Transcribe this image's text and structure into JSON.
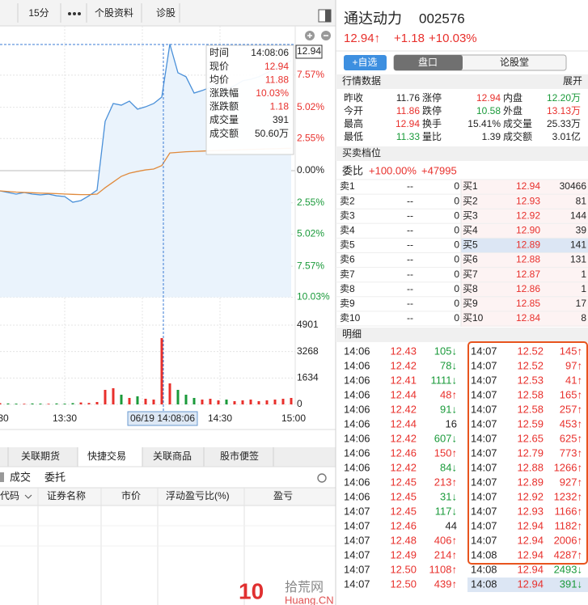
{
  "toolbar": {
    "tabs": [
      "15分",
      "个股资料",
      "诊股"
    ]
  },
  "chart_data": [
    {
      "type": "line",
      "ylim": [
        -10.03,
        10.03
      ],
      "yticks": [
        {
          "value": 7.57,
          "label": "7.57%"
        },
        {
          "value": 5.02,
          "label": "5.02%"
        },
        {
          "value": 2.55,
          "label": "2.55%"
        },
        {
          "value": 0,
          "label": "0.00%"
        },
        {
          "value": -2.55,
          "label": "2.55%"
        },
        {
          "value": -5.02,
          "label": "5.02%"
        },
        {
          "value": -7.57,
          "label": "7.57%"
        },
        {
          "value": -10.03,
          "label": "10.03%"
        }
      ],
      "series": [
        {
          "color": "#4a90d9",
          "values": [
            -1.6,
            -1.73,
            -1.86,
            -1.73,
            -1.86,
            -1.92,
            -1.86,
            -1.99,
            -2.05,
            -2.5,
            -2.37,
            -1.99,
            -1.54,
            3.91,
            5.32,
            5.19,
            5.51,
            4.87,
            5.06,
            5.32,
            5.83,
            10.03,
            7.76,
            7.44,
            6.15,
            6.35,
            6.6,
            6.79,
            6.47,
            6.73,
            7.12,
            7.24,
            7.44,
            7.76,
            8.08,
            8.4,
            8.72
          ]
        },
        {
          "color": "#e08a3c",
          "values": [
            -1.6,
            -1.65,
            -1.7,
            -1.72,
            -1.75,
            -1.78,
            -1.8,
            -1.82,
            -1.85,
            -1.88,
            -1.9,
            -1.9,
            -1.86,
            -1.35,
            -0.9,
            -0.45,
            -0.2,
            -0.06,
            0.06,
            0.13,
            0.4,
            1.4,
            1.45,
            1.5,
            1.52,
            1.55,
            1.58,
            1.6,
            1.62,
            1.64,
            1.66,
            1.68,
            1.7,
            1.72,
            1.74,
            1.76,
            1.78
          ]
        }
      ]
    },
    {
      "type": "bar",
      "ylim": [
        0,
        4901
      ],
      "yticks": [
        4901,
        3268,
        1634,
        0
      ],
      "values": [
        80,
        60,
        50,
        40,
        60,
        50,
        40,
        60,
        50,
        80,
        120,
        90,
        150,
        900,
        1000,
        600,
        400,
        500,
        350,
        300,
        4100,
        1300,
        900,
        600,
        400,
        300,
        350,
        250,
        300,
        200,
        250,
        300,
        200,
        250,
        300,
        350,
        400
      ]
    }
  ],
  "x_labels": [
    "30",
    "13:30",
    "14:30",
    "15:00"
  ],
  "cursor": {
    "price": "12.94",
    "time": "06/19 14:08:06"
  },
  "tooltip": {
    "rows": [
      [
        "时间",
        "14:08:06"
      ],
      [
        "现价",
        "12.94"
      ],
      [
        "均价",
        "11.88"
      ],
      [
        "涨跌幅",
        "10.03%"
      ],
      [
        "涨跌额",
        "1.18"
      ],
      [
        "成交量",
        "391"
      ],
      [
        "成交额",
        "50.60万"
      ]
    ],
    "value_colors": [
      "#222",
      "#e8302c",
      "#e8302c",
      "#e8302c",
      "#e8302c",
      "#222",
      "#222"
    ]
  },
  "stock": {
    "name": "通达动力",
    "code": "002576",
    "price": "12.94↑",
    "change": "+1.18",
    "change_pct": "+10.03%"
  },
  "buttons": [
    "+自选",
    "盘口",
    "论股堂"
  ],
  "quote": {
    "title": "行情数据",
    "expand": "展开",
    "rows": [
      [
        "昨收",
        "11.76",
        "涨停",
        "12.94",
        "内盘",
        "12.20万"
      ],
      [
        "今开",
        "11.86",
        "跌停",
        "10.58",
        "外盘",
        "13.13万"
      ],
      [
        "最高",
        "12.94",
        "换手",
        "15.41%",
        "成交量",
        "25.33万"
      ],
      [
        "最低",
        "11.33",
        "量比",
        "1.39",
        "成交额",
        "3.01亿"
      ]
    ],
    "colors": [
      [
        "#222",
        "#e8302c",
        "#1a9a3a"
      ],
      [
        "#e8302c",
        "#1a9a3a",
        "#e8302c"
      ],
      [
        "#e8302c",
        "#222",
        "#222"
      ],
      [
        "#1a9a3a",
        "#222",
        "#222"
      ]
    ]
  },
  "orderbook": {
    "title": "买卖档位",
    "ratio_label": "委比",
    "ratio": "+100.00%",
    "diff": "+47995",
    "sell": [
      [
        "卖1",
        "--",
        "0"
      ],
      [
        "卖2",
        "--",
        "0"
      ],
      [
        "卖3",
        "--",
        "0"
      ],
      [
        "卖4",
        "--",
        "0"
      ],
      [
        "卖5",
        "--",
        "0"
      ],
      [
        "卖6",
        "--",
        "0"
      ],
      [
        "卖7",
        "--",
        "0"
      ],
      [
        "卖8",
        "--",
        "0"
      ],
      [
        "卖9",
        "--",
        "0"
      ],
      [
        "卖10",
        "--",
        "0"
      ]
    ],
    "buy": [
      [
        "买1",
        "12.94",
        "30466"
      ],
      [
        "买2",
        "12.93",
        "81"
      ],
      [
        "买3",
        "12.92",
        "144"
      ],
      [
        "买4",
        "12.90",
        "39"
      ],
      [
        "买5",
        "12.89",
        "141"
      ],
      [
        "买6",
        "12.88",
        "131"
      ],
      [
        "买7",
        "12.87",
        "1"
      ],
      [
        "买8",
        "12.86",
        "1"
      ],
      [
        "买9",
        "12.85",
        "17"
      ],
      [
        "买10",
        "12.84",
        "8"
      ]
    ]
  },
  "trades": {
    "title": "明细",
    "left": [
      [
        "14:06",
        "12.43",
        "105↓"
      ],
      [
        "14:06",
        "12.42",
        "78↓"
      ],
      [
        "14:06",
        "12.41",
        "1111↓"
      ],
      [
        "14:06",
        "12.44",
        "48↑"
      ],
      [
        "14:06",
        "12.42",
        "91↓"
      ],
      [
        "14:06",
        "12.44",
        "16"
      ],
      [
        "14:06",
        "12.42",
        "607↓"
      ],
      [
        "14:06",
        "12.46",
        "150↑"
      ],
      [
        "14:06",
        "12.42",
        "84↓"
      ],
      [
        "14:06",
        "12.45",
        "213↑"
      ],
      [
        "14:06",
        "12.45",
        "31↓"
      ],
      [
        "14:07",
        "12.45",
        "117↓"
      ],
      [
        "14:07",
        "12.46",
        "44"
      ],
      [
        "14:07",
        "12.48",
        "406↑"
      ],
      [
        "14:07",
        "12.49",
        "214↑"
      ],
      [
        "14:07",
        "12.50",
        "1108↑"
      ],
      [
        "14:07",
        "12.50",
        "439↑"
      ]
    ],
    "right": [
      [
        "14:07",
        "12.52",
        "145↑"
      ],
      [
        "14:07",
        "12.52",
        "97↑"
      ],
      [
        "14:07",
        "12.53",
        "41↑"
      ],
      [
        "14:07",
        "12.58",
        "165↑"
      ],
      [
        "14:07",
        "12.58",
        "257↑"
      ],
      [
        "14:07",
        "12.59",
        "453↑"
      ],
      [
        "14:07",
        "12.65",
        "625↑"
      ],
      [
        "14:07",
        "12.79",
        "773↑"
      ],
      [
        "14:07",
        "12.88",
        "1266↑"
      ],
      [
        "14:07",
        "12.89",
        "927↑"
      ],
      [
        "14:07",
        "12.92",
        "1232↑"
      ],
      [
        "14:07",
        "12.93",
        "1166↑"
      ],
      [
        "14:07",
        "12.94",
        "1182↑"
      ],
      [
        "14:07",
        "12.94",
        "2006↑"
      ],
      [
        "14:08",
        "12.94",
        "4287↑"
      ],
      [
        "14:08",
        "12.94",
        "2493↓"
      ],
      [
        "14:08",
        "12.94",
        "391↓"
      ]
    ]
  },
  "bottom": {
    "tabs": [
      "关联期货",
      "快捷交易",
      "关联商品",
      "股市便签"
    ],
    "subtabs": [
      "成交",
      "委托"
    ],
    "columns": [
      "代码",
      "证券名称",
      "市价",
      "浮动盈亏比(%)",
      "盈亏"
    ]
  },
  "watermark": {
    "logo": "10",
    "name": "拾荒网",
    "domain": "Huang.CN"
  }
}
